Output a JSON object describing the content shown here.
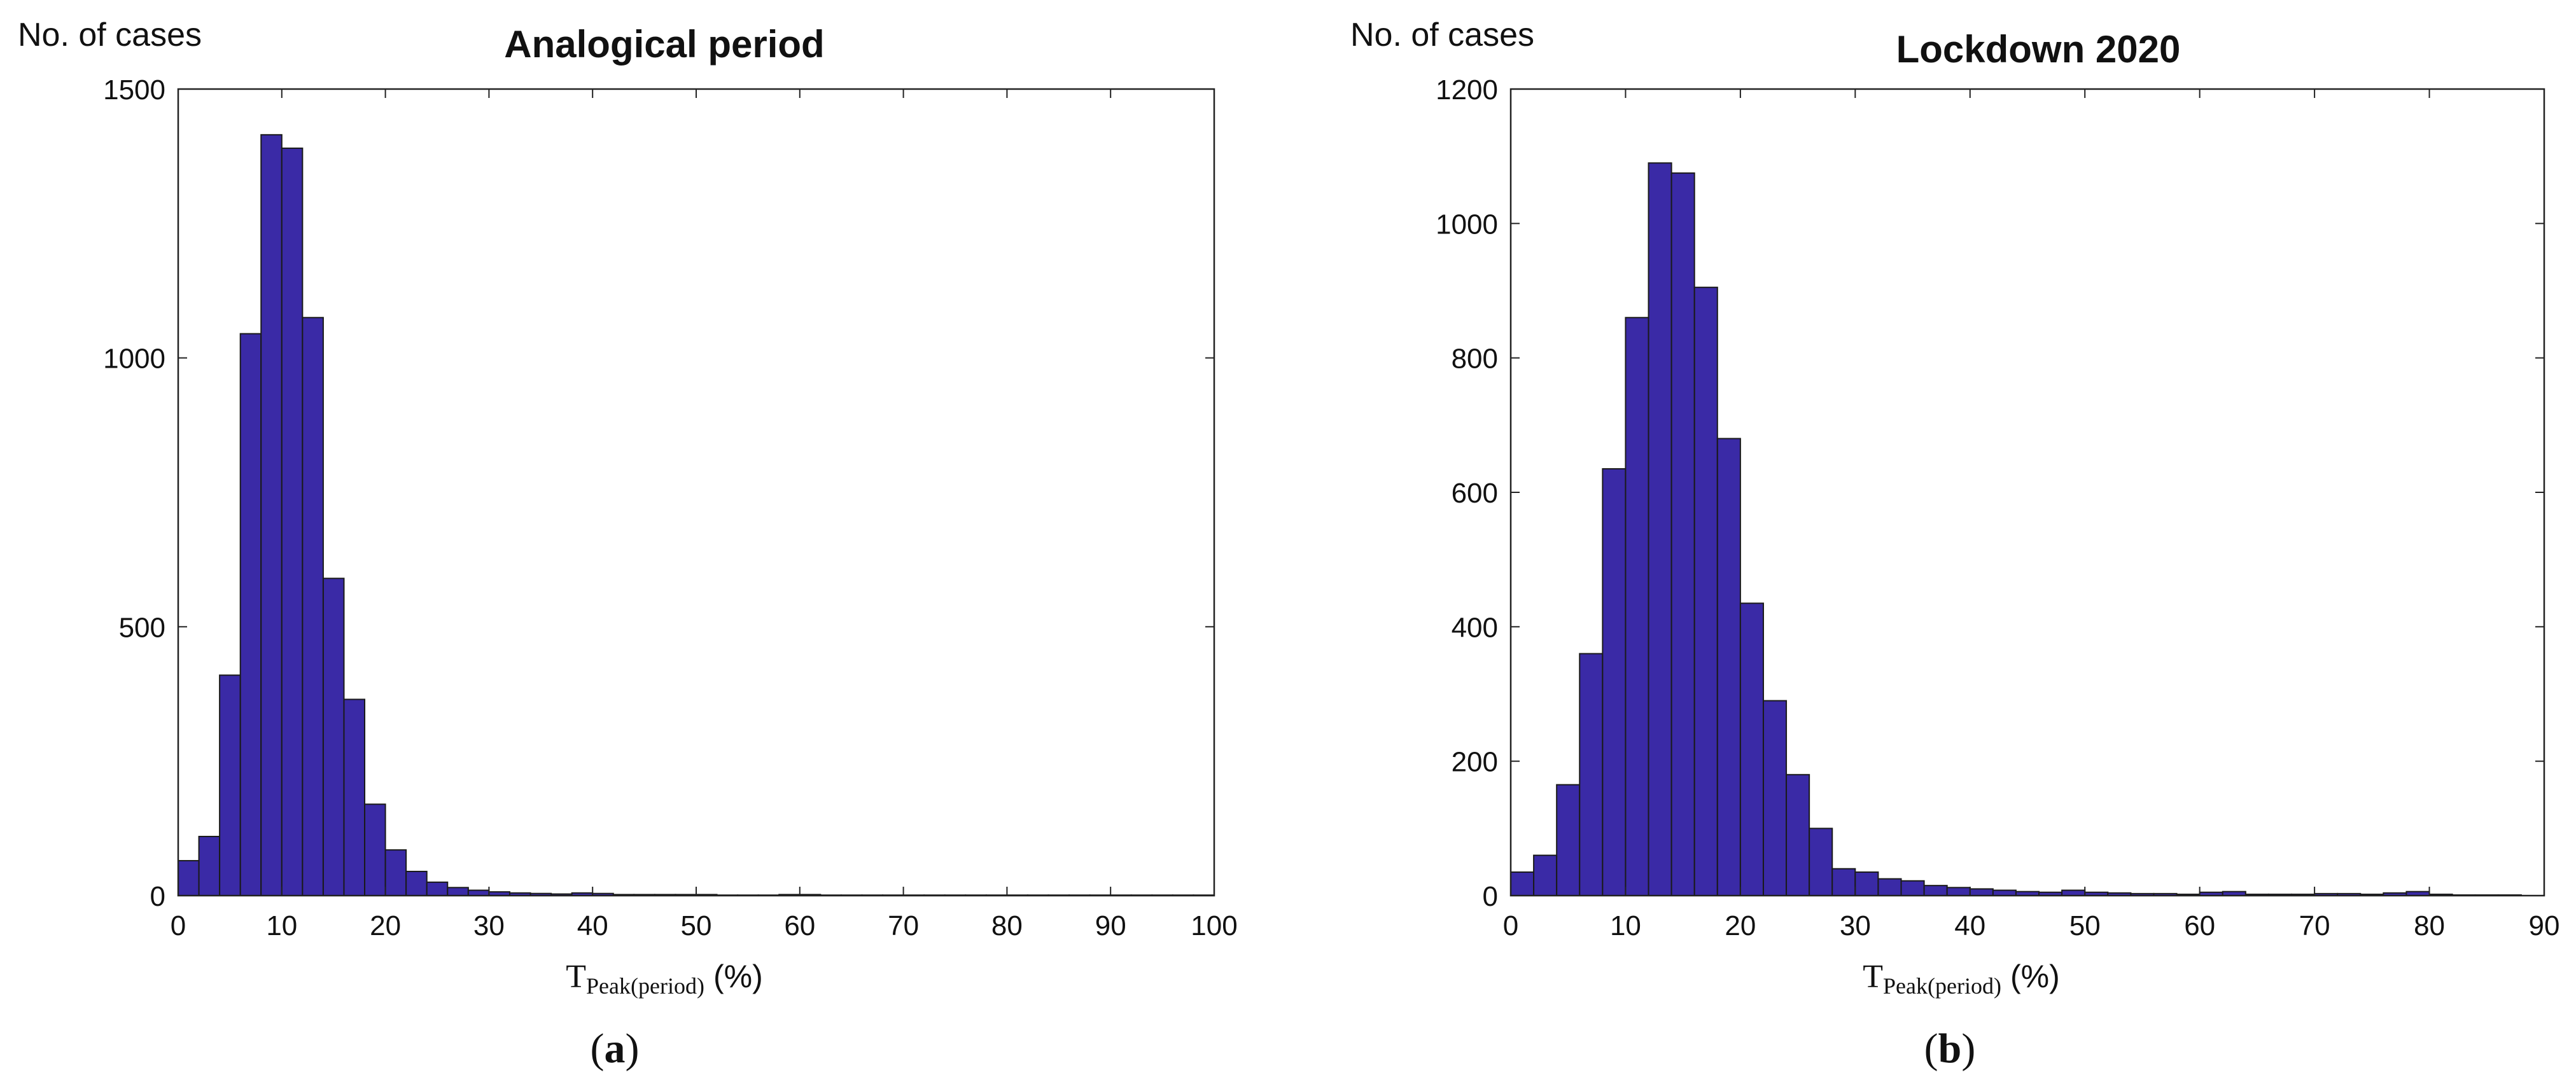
{
  "colors": {
    "bar_fill": "#3a2aa6",
    "bar_stroke": "#1a1a1a",
    "axis": "#222222",
    "text": "#111111"
  },
  "panels": [
    {
      "caption_letter": "a",
      "chart_data": {
        "type": "bar",
        "title": "Analogical period",
        "ylabel": "No. of cases",
        "xlabel_main": "T",
        "xlabel_sub": "Peak(period)",
        "xlabel_unit": "(%)",
        "xlim": [
          0,
          100
        ],
        "ylim": [
          0,
          1500
        ],
        "bin_width": 2,
        "xticks": [
          0,
          10,
          20,
          30,
          40,
          50,
          60,
          70,
          80,
          90,
          100
        ],
        "yticks": [
          0,
          500,
          1000,
          1500
        ],
        "bins": [
          0,
          2,
          4,
          6,
          8,
          10,
          12,
          14,
          16,
          18,
          20,
          22,
          24,
          26,
          28,
          30,
          32,
          34,
          36,
          38,
          40,
          42,
          44,
          46,
          48,
          50,
          52,
          54,
          56,
          58,
          60,
          62,
          64,
          66,
          68,
          70,
          72,
          74,
          76,
          78,
          80,
          82,
          84,
          86,
          88,
          90,
          92,
          94,
          96,
          98
        ],
        "values": [
          65,
          110,
          410,
          1045,
          1415,
          1390,
          1075,
          590,
          365,
          170,
          85,
          45,
          25,
          15,
          10,
          7,
          5,
          4,
          3,
          5,
          4,
          2,
          2,
          2,
          2,
          2,
          1,
          1,
          1,
          2,
          2,
          1,
          1,
          1,
          1,
          1,
          1,
          1,
          1,
          1,
          1,
          1,
          1,
          1,
          1,
          1,
          1,
          1,
          1,
          1
        ]
      }
    },
    {
      "caption_letter": "b",
      "chart_data": {
        "type": "bar",
        "title": "Lockdown 2020",
        "ylabel": "No. of cases",
        "xlabel_main": "T",
        "xlabel_sub": "Peak(period)",
        "xlabel_unit": "(%)",
        "xlim": [
          0,
          90
        ],
        "ylim": [
          0,
          1200
        ],
        "bin_width": 2,
        "xticks": [
          0,
          10,
          20,
          30,
          40,
          50,
          60,
          70,
          80,
          90
        ],
        "yticks": [
          0,
          200,
          400,
          600,
          800,
          1000,
          1200
        ],
        "bins": [
          0,
          2,
          4,
          6,
          8,
          10,
          12,
          14,
          16,
          18,
          20,
          22,
          24,
          26,
          28,
          30,
          32,
          34,
          36,
          38,
          40,
          42,
          44,
          46,
          48,
          50,
          52,
          54,
          56,
          58,
          60,
          62,
          64,
          66,
          68,
          70,
          72,
          74,
          76,
          78,
          80,
          82,
          84,
          86
        ],
        "values": [
          35,
          60,
          165,
          360,
          635,
          860,
          1090,
          1075,
          905,
          680,
          435,
          290,
          180,
          100,
          40,
          35,
          25,
          22,
          15,
          12,
          10,
          8,
          6,
          5,
          8,
          5,
          4,
          3,
          3,
          2,
          5,
          6,
          2,
          2,
          2,
          3,
          3,
          2,
          4,
          6,
          2,
          1,
          1,
          1
        ]
      }
    }
  ]
}
